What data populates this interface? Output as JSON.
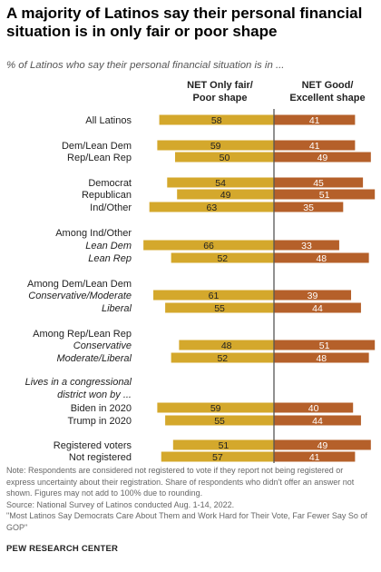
{
  "title": "A majority of Latinos say their personal financial situation is in only fair or poor shape",
  "subtitle": "% of Latinos who say their personal financial situation is in ...",
  "colors": {
    "poor": "#d4a82c",
    "good": "#b5602a",
    "divider": "#555555",
    "label": "#ffffff"
  },
  "chart_data": {
    "type": "bar",
    "layout": "diverging",
    "series": [
      {
        "name": "NET Only fair/ Poor shape",
        "header_lines": [
          "NET Only fair/",
          "Poor shape"
        ],
        "color": "#d4a82c"
      },
      {
        "name": "NET Good/ Excellent shape",
        "header_lines": [
          "NET Good/",
          "Excellent shape"
        ],
        "color": "#b5602a"
      }
    ],
    "rows": [
      {
        "label": "All Latinos",
        "poor": 58,
        "good": 41
      },
      {
        "label": "Dem/Lean Dem",
        "poor": 59,
        "good": 41
      },
      {
        "label": "Rep/Lean Rep",
        "poor": 50,
        "good": 49
      },
      {
        "label": "Democrat",
        "poor": 54,
        "good": 45
      },
      {
        "label": "Republican",
        "poor": 49,
        "good": 51
      },
      {
        "label": "Ind/Other",
        "poor": 63,
        "good": 35
      },
      {
        "label": "Among Ind/Other",
        "header": true
      },
      {
        "label": "Lean Dem",
        "italic": true,
        "poor": 66,
        "good": 33
      },
      {
        "label": "Lean Rep",
        "italic": true,
        "poor": 52,
        "good": 48
      },
      {
        "label": "Among Dem/Lean Dem",
        "header": true
      },
      {
        "label": "Conservative/Moderate",
        "italic": true,
        "poor": 61,
        "good": 39
      },
      {
        "label": "Liberal",
        "italic": true,
        "poor": 55,
        "good": 44
      },
      {
        "label": "Among Rep/Lean Rep",
        "header": true
      },
      {
        "label": "Conservative",
        "italic": true,
        "poor": 48,
        "good": 51
      },
      {
        "label": "Moderate/Liberal",
        "italic": true,
        "poor": 52,
        "good": 48
      },
      {
        "label": "Lives in a congressional",
        "header": true,
        "italic": true
      },
      {
        "label": "district won by ...",
        "header": true,
        "italic": true
      },
      {
        "label": "Biden in 2020",
        "poor": 59,
        "good": 40
      },
      {
        "label": "Trump in 2020",
        "poor": 55,
        "good": 44
      },
      {
        "label": "Registered voters",
        "poor": 51,
        "good": 49
      },
      {
        "label": "Not registered",
        "poor": 57,
        "good": 41
      }
    ]
  },
  "notes": [
    "Note: Respondents are considered not registered to vote if they report not being registered or express uncertainty about their registration. Share of respondents who didn't offer an answer not shown. Figures may not add to 100% due to rounding.",
    "Source: National Survey of Latinos conducted Aug. 1-14, 2022.",
    "\"Most Latinos Say Democrats Care About Them and Work Hard for Their Vote, Far Fewer Say So of GOP\""
  ],
  "brand": "PEW RESEARCH CENTER"
}
